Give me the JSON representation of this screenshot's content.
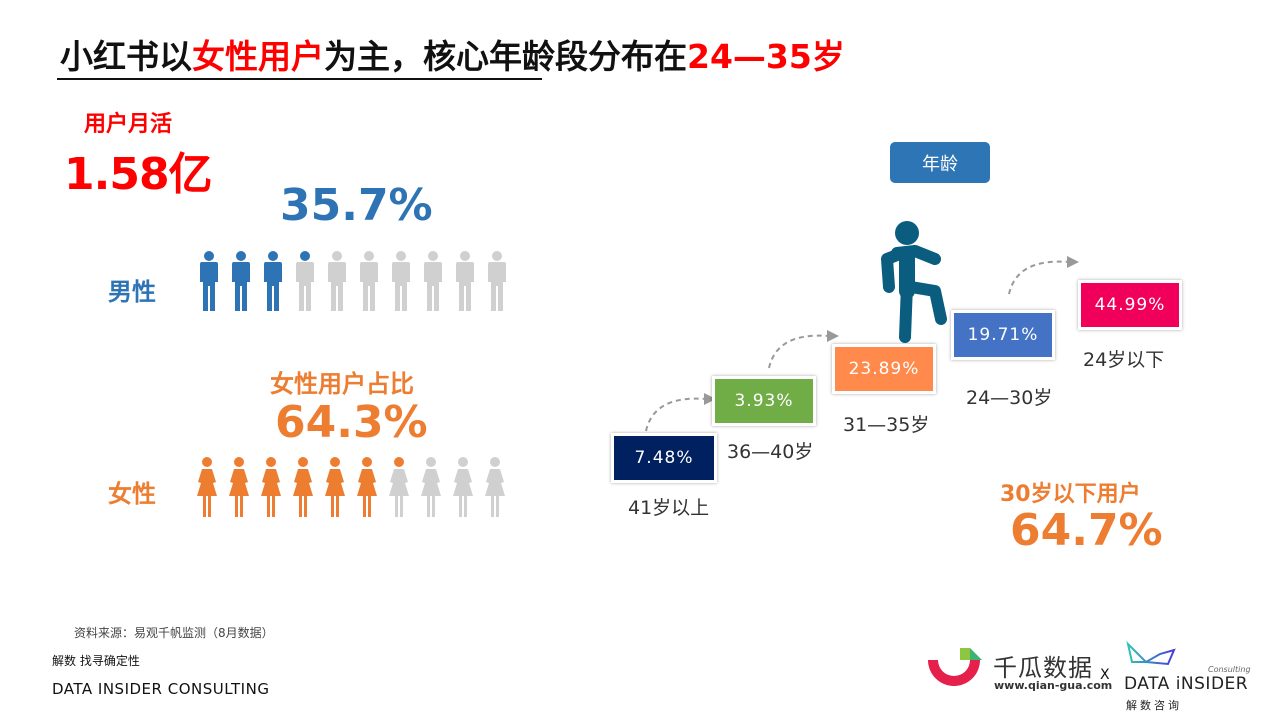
{
  "title": {
    "part1": "小红书以",
    "highlight1": "女性用户",
    "part2": "为主，核心年龄段分布在",
    "highlight2": "24—35岁"
  },
  "mau": {
    "label": "用户月活",
    "value": "1.58亿"
  },
  "gender": {
    "male": {
      "label": "男性",
      "percent": "35.7%",
      "filled_icons": 3.57,
      "total_icons": 10,
      "color": "#2e74b5"
    },
    "female": {
      "title": "女性用户占比",
      "label": "女性",
      "percent": "64.3%",
      "filled_icons": 6.43,
      "total_icons": 10,
      "color": "#ed7d31"
    },
    "inactive_color": "#d0d0d0"
  },
  "age": {
    "tag": "年龄",
    "steps": [
      {
        "label": "41岁以上",
        "value": "7.48%",
        "color": "#002060"
      },
      {
        "label": "36—40岁",
        "value": "3.93%",
        "color": "#70ad47"
      },
      {
        "label": "31—35岁",
        "value": "23.89%",
        "color": "#ff8a4c"
      },
      {
        "label": "24—30岁",
        "value": "19.71%",
        "color": "#4472c4"
      },
      {
        "label": "24岁以下",
        "value": "44.99%",
        "color": "#f0005a"
      }
    ],
    "summary_label": "30岁以下用户",
    "summary_value": "64.7%"
  },
  "chart_data": [
    {
      "type": "pie",
      "title": "性别分布",
      "categories": [
        "男性",
        "女性"
      ],
      "values": [
        35.7,
        64.3
      ],
      "unit": "%"
    },
    {
      "type": "bar",
      "title": "年龄",
      "categories": [
        "41岁以上",
        "36—40岁",
        "31—35岁",
        "24—30岁",
        "24岁以下"
      ],
      "values": [
        7.48,
        3.93,
        23.89,
        19.71,
        44.99
      ],
      "unit": "%",
      "annotations": [
        "30岁以下用户 64.7%",
        "用户月活 1.58亿"
      ]
    }
  ],
  "footer": {
    "source": "资料来源：易观千帆监测（8月数据）",
    "slogan": "解数 找寻确定性",
    "company": "DATA INSIDER CONSULTING",
    "partner_name": "千瓜数据",
    "partner_url": "www.qian-gua.com",
    "cross": "X",
    "di_consulting": "Consulting",
    "di_name": "DATA iNSIDER",
    "di_cn": "解数咨询"
  }
}
